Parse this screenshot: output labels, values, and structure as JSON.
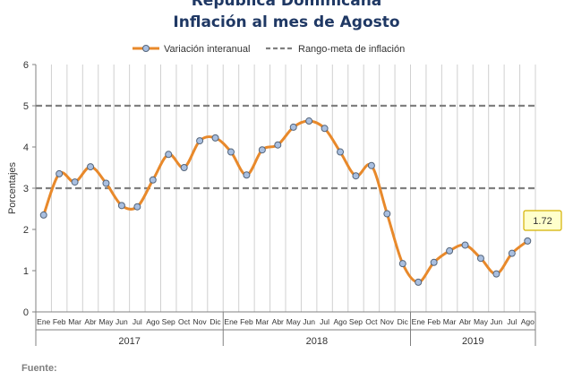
{
  "chart_data": {
    "type": "line",
    "supertitle": "República Dominicana",
    "title": "Inflación al mes de Agosto",
    "ylabel": "Porcentajes",
    "xlabel": "",
    "source_label": "Fuente:",
    "ylim": [
      0,
      6
    ],
    "yticks": [
      "0",
      "1",
      "2",
      "3",
      "4",
      "5",
      "6"
    ],
    "grid": "vertical",
    "legend_position": "top",
    "years": [
      {
        "label": "2017",
        "months": [
          "Ene",
          "Feb",
          "Mar",
          "Abr",
          "May",
          "Jun",
          "Jul",
          "Ago",
          "Sep",
          "Oct",
          "Nov",
          "Dic"
        ]
      },
      {
        "label": "2018",
        "months": [
          "Ene",
          "Feb",
          "Mar",
          "Abr",
          "May",
          "Jun",
          "Jul",
          "Ago",
          "Sep",
          "Oct",
          "Nov",
          "Dic"
        ]
      },
      {
        "label": "2019",
        "months": [
          "Ene",
          "Feb",
          "Mar",
          "Abr",
          "May",
          "Jun",
          "Jul",
          "Ago"
        ]
      }
    ],
    "series": [
      {
        "name": "Variación interanual",
        "color": "#e8892b",
        "marker_color": "#a9bfe0",
        "values": [
          2.35,
          3.35,
          3.15,
          3.52,
          3.12,
          2.58,
          2.55,
          3.2,
          3.82,
          3.5,
          4.15,
          4.22,
          3.88,
          3.32,
          3.93,
          4.05,
          4.48,
          4.63,
          4.45,
          3.88,
          3.3,
          3.55,
          2.38,
          1.17,
          0.72,
          1.2,
          1.48,
          1.62,
          1.3,
          0.92,
          1.42,
          1.72
        ]
      },
      {
        "name": "Rango-meta de inflación",
        "color": "#808080",
        "dashed": true,
        "levels": [
          3,
          5
        ]
      }
    ],
    "annotation": {
      "label": "1.72",
      "bg": "#ffffcc",
      "border": "#d4b000"
    }
  }
}
